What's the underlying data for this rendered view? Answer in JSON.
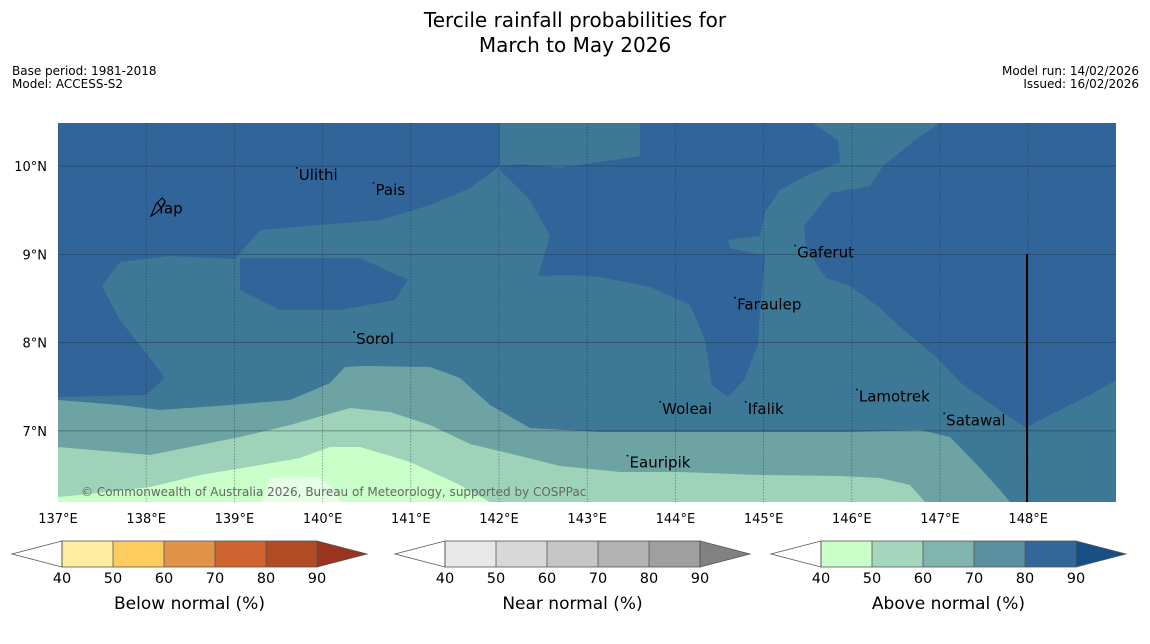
{
  "title": {
    "line1": "Tercile rainfall probabilities for",
    "line2": "March to May 2026"
  },
  "meta": {
    "base_period": "Base period: 1981-2018",
    "model": "Model: ACCESS-S2",
    "model_run": "Model run: 14/02/2026",
    "issued": "Issued: 16/02/2026"
  },
  "map": {
    "lon_range": [
      137,
      149
    ],
    "lat_range": [
      6.2,
      10.5
    ],
    "lat_ticks": [
      {
        "value": 10,
        "label": "10°N"
      },
      {
        "value": 9,
        "label": "9°N"
      },
      {
        "value": 8,
        "label": "8°N"
      },
      {
        "value": 7,
        "label": "7°N"
      }
    ],
    "lon_ticks": [
      {
        "value": 137,
        "label": "137°E"
      },
      {
        "value": 138,
        "label": "138°E"
      },
      {
        "value": 139,
        "label": "139°E"
      },
      {
        "value": 140,
        "label": "140°E"
      },
      {
        "value": 141,
        "label": "141°E"
      },
      {
        "value": 142,
        "label": "142°E"
      },
      {
        "value": 143,
        "label": "143°E"
      },
      {
        "value": 144,
        "label": "144°E"
      },
      {
        "value": 145,
        "label": "145°E"
      },
      {
        "value": 146,
        "label": "146°E"
      },
      {
        "value": 147,
        "label": "147°E"
      },
      {
        "value": 148,
        "label": "148°E"
      }
    ],
    "places": [
      {
        "name": "Ulithi",
        "lon": 139.73,
        "lat": 9.9
      },
      {
        "name": "Pais",
        "lon": 140.6,
        "lat": 9.73
      },
      {
        "name": "Yap",
        "lon": 138.12,
        "lat": 9.52
      },
      {
        "name": "Gaferut",
        "lon": 145.38,
        "lat": 9.02
      },
      {
        "name": "Faraulep",
        "lon": 144.7,
        "lat": 8.43
      },
      {
        "name": "Sorol",
        "lon": 140.38,
        "lat": 8.04
      },
      {
        "name": "Lamotrek",
        "lon": 146.08,
        "lat": 7.39
      },
      {
        "name": "Woleai",
        "lon": 143.85,
        "lat": 7.25
      },
      {
        "name": "Ifalik",
        "lon": 144.82,
        "lat": 7.25
      },
      {
        "name": "Satawal",
        "lon": 147.07,
        "lat": 7.12
      },
      {
        "name": "Eauripik",
        "lon": 143.48,
        "lat": 6.64
      }
    ],
    "copyright": "© Commonwealth of Australia 2026, Bureau of Meteorology, supported by COSPPac",
    "colors": {
      "c80": "#31659a",
      "c70": "#3d7896",
      "c60": "#6ea3a4",
      "c50": "#9ed3ba",
      "c40": "#caffca",
      "c30": "#e6fde6"
    }
  },
  "colorbars": [
    {
      "label": "Below normal (%)",
      "colors": [
        "#ffeea0",
        "#fecb5f",
        "#e2934a",
        "#cf6430",
        "#b24a23"
      ],
      "high_color": "#9a3420",
      "ticks": [
        "40",
        "50",
        "60",
        "70",
        "80",
        "90"
      ]
    },
    {
      "label": "Near normal (%)",
      "colors": [
        "#e8e8e8",
        "#d8d8d8",
        "#c6c6c6",
        "#b2b2b2",
        "#9f9f9f"
      ],
      "high_color": "#818181",
      "ticks": [
        "40",
        "50",
        "60",
        "70",
        "80",
        "90"
      ]
    },
    {
      "label": "Above normal (%)",
      "colors": [
        "#caffca",
        "#a4d7be",
        "#7fb5ae",
        "#5a8f9f",
        "#336799"
      ],
      "high_color": "#174f84",
      "ticks": [
        "40",
        "50",
        "60",
        "70",
        "80",
        "90"
      ]
    }
  ]
}
